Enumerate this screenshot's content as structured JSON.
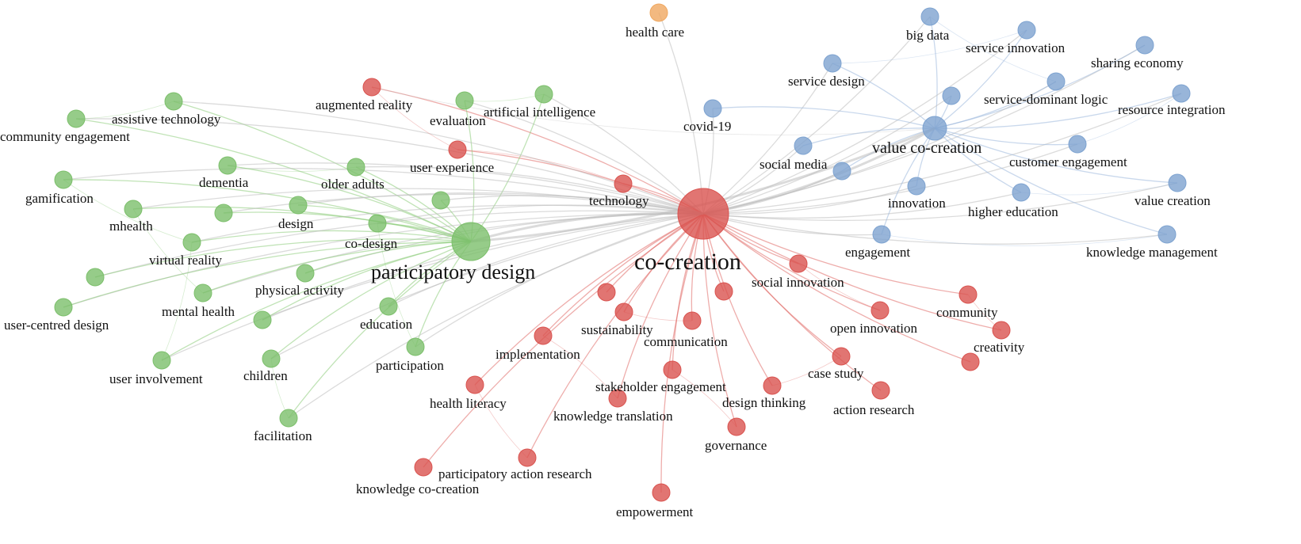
{
  "clusters": {
    "red": {
      "color": "#d9534f",
      "edge": "#e06a66"
    },
    "green": {
      "color": "#7cbf6b",
      "edge": "#8ccc7a"
    },
    "blue": {
      "color": "#7ea3d0",
      "edge": "#9cb8dc"
    },
    "orange": {
      "color": "#f0a860",
      "edge": "#f0b878"
    }
  },
  "nodes": [
    {
      "id": "co-creation",
      "label": "co-creation",
      "cluster": "red",
      "weight": 10
    },
    {
      "id": "participatory-design",
      "label": "participatory design",
      "cluster": "green",
      "weight": 8
    },
    {
      "id": "value-co-creation",
      "label": "value co-creation",
      "cluster": "blue",
      "weight": 5
    },
    {
      "id": "health-care",
      "label": "health care",
      "cluster": "orange",
      "weight": 1
    },
    {
      "id": "big-data",
      "label": "big data",
      "cluster": "blue",
      "weight": 1
    },
    {
      "id": "service-innovation",
      "label": "service innovation",
      "cluster": "blue",
      "weight": 1
    },
    {
      "id": "sharing-economy",
      "label": "sharing economy",
      "cluster": "blue",
      "weight": 1
    },
    {
      "id": "service-design",
      "label": "service design",
      "cluster": "blue",
      "weight": 1
    },
    {
      "id": "service-dominant-logic",
      "label": "service-dominant logic",
      "cluster": "blue",
      "weight": 1
    },
    {
      "id": "resource-integration",
      "label": "resource integration",
      "cluster": "blue",
      "weight": 1
    },
    {
      "id": "covid-19",
      "label": "covid-19",
      "cluster": "blue",
      "weight": 1
    },
    {
      "id": "social-media",
      "label": "social media",
      "cluster": "blue",
      "weight": 1
    },
    {
      "id": "customer-engagement",
      "label": "customer engagement",
      "cluster": "blue",
      "weight": 1
    },
    {
      "id": "innovation",
      "label": "innovation",
      "cluster": "blue",
      "weight": 1
    },
    {
      "id": "higher-education",
      "label": "higher education",
      "cluster": "blue",
      "weight": 1
    },
    {
      "id": "value-creation",
      "label": "value creation",
      "cluster": "blue",
      "weight": 1
    },
    {
      "id": "engagement",
      "label": "engagement",
      "cluster": "blue",
      "weight": 1
    },
    {
      "id": "knowledge-management",
      "label": "knowledge management",
      "cluster": "blue",
      "weight": 1
    },
    {
      "id": "blue-unlabeled-1",
      "label": "",
      "cluster": "blue",
      "weight": 1
    },
    {
      "id": "blue-unlabeled-2",
      "label": "",
      "cluster": "blue",
      "weight": 1
    },
    {
      "id": "augmented-reality",
      "label": "augmented reality",
      "cluster": "red",
      "weight": 1
    },
    {
      "id": "user-experience",
      "label": "user experience",
      "cluster": "red",
      "weight": 1
    },
    {
      "id": "technology",
      "label": "technology",
      "cluster": "red",
      "weight": 1
    },
    {
      "id": "social-innovation",
      "label": "social innovation",
      "cluster": "red",
      "weight": 1
    },
    {
      "id": "community",
      "label": "community",
      "cluster": "red",
      "weight": 1
    },
    {
      "id": "open-innovation",
      "label": "open innovation",
      "cluster": "red",
      "weight": 1
    },
    {
      "id": "creativity",
      "label": "creativity",
      "cluster": "red",
      "weight": 1
    },
    {
      "id": "sustainability",
      "label": "sustainability",
      "cluster": "red",
      "weight": 1
    },
    {
      "id": "communication",
      "label": "communication",
      "cluster": "red",
      "weight": 1
    },
    {
      "id": "implementation",
      "label": "implementation",
      "cluster": "red",
      "weight": 1
    },
    {
      "id": "case-study",
      "label": "case study",
      "cluster": "red",
      "weight": 1
    },
    {
      "id": "stakeholder-engagement",
      "label": "stakeholder engagement",
      "cluster": "red",
      "weight": 1
    },
    {
      "id": "design-thinking",
      "label": "design thinking",
      "cluster": "red",
      "weight": 1
    },
    {
      "id": "action-research",
      "label": "action research",
      "cluster": "red",
      "weight": 1
    },
    {
      "id": "health-literacy",
      "label": "health literacy",
      "cluster": "red",
      "weight": 1
    },
    {
      "id": "knowledge-translation",
      "label": "knowledge translation",
      "cluster": "red",
      "weight": 1
    },
    {
      "id": "governance",
      "label": "governance",
      "cluster": "red",
      "weight": 1
    },
    {
      "id": "participatory-action-research",
      "label": "participatory action research",
      "cluster": "red",
      "weight": 1
    },
    {
      "id": "knowledge-co-creation",
      "label": "knowledge co-creation",
      "cluster": "red",
      "weight": 1
    },
    {
      "id": "empowerment",
      "label": "empowerment",
      "cluster": "red",
      "weight": 1
    },
    {
      "id": "red-unlabeled-1",
      "label": "",
      "cluster": "red",
      "weight": 1
    },
    {
      "id": "red-unlabeled-2",
      "label": "",
      "cluster": "red",
      "weight": 1
    },
    {
      "id": "red-unlabeled-3",
      "label": "",
      "cluster": "red",
      "weight": 1
    },
    {
      "id": "evaluation",
      "label": "evaluation",
      "cluster": "green",
      "weight": 1
    },
    {
      "id": "artificial-intelligence",
      "label": "artificial intelligence",
      "cluster": "green",
      "weight": 1
    },
    {
      "id": "assistive-technology",
      "label": "assistive technology",
      "cluster": "green",
      "weight": 1
    },
    {
      "id": "community-engagement",
      "label": "community engagement",
      "cluster": "green",
      "weight": 1
    },
    {
      "id": "gamification",
      "label": "gamification",
      "cluster": "green",
      "weight": 1
    },
    {
      "id": "dementia",
      "label": "dementia",
      "cluster": "green",
      "weight": 1
    },
    {
      "id": "older-adults",
      "label": "older adults",
      "cluster": "green",
      "weight": 1
    },
    {
      "id": "design",
      "label": "design",
      "cluster": "green",
      "weight": 1
    },
    {
      "id": "co-design",
      "label": "co-design",
      "cluster": "green",
      "weight": 1
    },
    {
      "id": "mhealth",
      "label": "mhealth",
      "cluster": "green",
      "weight": 1
    },
    {
      "id": "virtual-reality",
      "label": "virtual reality",
      "cluster": "green",
      "weight": 1
    },
    {
      "id": "physical-activity",
      "label": "physical activity",
      "cluster": "green",
      "weight": 1
    },
    {
      "id": "mental-health",
      "label": "mental health",
      "cluster": "green",
      "weight": 1
    },
    {
      "id": "user-centred-design",
      "label": "user-centred design",
      "cluster": "green",
      "weight": 1
    },
    {
      "id": "education",
      "label": "education",
      "cluster": "green",
      "weight": 1
    },
    {
      "id": "user-involvement",
      "label": "user involvement",
      "cluster": "green",
      "weight": 1
    },
    {
      "id": "children",
      "label": "children",
      "cluster": "green",
      "weight": 1
    },
    {
      "id": "participation",
      "label": "participation",
      "cluster": "green",
      "weight": 1
    },
    {
      "id": "facilitation",
      "label": "facilitation",
      "cluster": "green",
      "weight": 1
    },
    {
      "id": "green-unlabeled-1",
      "label": "",
      "cluster": "green",
      "weight": 1
    },
    {
      "id": "green-unlabeled-2",
      "label": "",
      "cluster": "green",
      "weight": 1
    },
    {
      "id": "green-unlabeled-3",
      "label": "",
      "cluster": "green",
      "weight": 1
    },
    {
      "id": "green-unlabeled-4",
      "label": "",
      "cluster": "green",
      "weight": 1
    }
  ]
}
